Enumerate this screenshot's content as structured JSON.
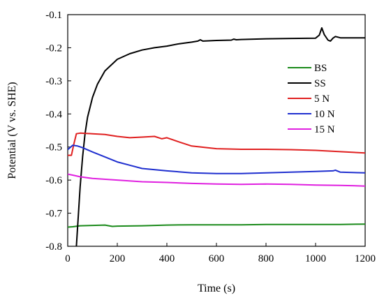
{
  "chart_data": {
    "type": "line",
    "xlabel": "Time (s)",
    "ylabel": "Potential (V vs. SHE)",
    "xlim": [
      0,
      1200
    ],
    "ylim": [
      -0.8,
      -0.1
    ],
    "x_ticks": [
      0,
      200,
      400,
      600,
      800,
      1000,
      1200
    ],
    "y_ticks": [
      -0.8,
      -0.7,
      -0.6,
      -0.5,
      -0.4,
      -0.3,
      -0.2,
      -0.1
    ],
    "x_tick_labels": [
      "0",
      "200",
      "400",
      "600",
      "800",
      "1000",
      "1200"
    ],
    "y_tick_labels": [
      "-0.8",
      "-0.7",
      "-0.6",
      "-0.5",
      "-0.4",
      "-0.3",
      "-0.2",
      "-0.1"
    ],
    "grid": false,
    "legend_position": "right",
    "series": [
      {
        "name": "BS",
        "color": "#1a8a1a",
        "x": [
          0,
          20,
          50,
          100,
          150,
          180,
          200,
          300,
          400,
          500,
          520,
          600,
          700,
          800,
          900,
          1000,
          1100,
          1200
        ],
        "y": [
          -0.742,
          -0.741,
          -0.738,
          -0.737,
          -0.736,
          -0.74,
          -0.739,
          -0.738,
          -0.736,
          -0.735,
          -0.735,
          -0.735,
          -0.735,
          -0.734,
          -0.734,
          -0.734,
          -0.734,
          -0.733
        ]
      },
      {
        "name": "SS",
        "color": "#000000",
        "x": [
          35,
          40,
          50,
          60,
          70,
          80,
          100,
          120,
          150,
          200,
          250,
          300,
          350,
          400,
          450,
          500,
          525,
          535,
          545,
          600,
          660,
          670,
          680,
          700,
          800,
          900,
          1000,
          1015,
          1025,
          1035,
          1050,
          1060,
          1070,
          1080,
          1100,
          1200
        ],
        "y": [
          -0.8,
          -0.74,
          -0.62,
          -0.53,
          -0.46,
          -0.41,
          -0.35,
          -0.31,
          -0.27,
          -0.235,
          -0.218,
          -0.207,
          -0.2,
          -0.195,
          -0.188,
          -0.183,
          -0.18,
          -0.176,
          -0.18,
          -0.178,
          -0.177,
          -0.174,
          -0.176,
          -0.175,
          -0.173,
          -0.172,
          -0.171,
          -0.162,
          -0.14,
          -0.16,
          -0.177,
          -0.18,
          -0.171,
          -0.166,
          -0.17,
          -0.17
        ]
      },
      {
        "name": "5 N",
        "color": "#e02020",
        "x": [
          0,
          15,
          25,
          35,
          50,
          100,
          150,
          200,
          250,
          300,
          350,
          380,
          400,
          450,
          500,
          600,
          700,
          800,
          900,
          1000,
          1100,
          1200
        ],
        "y": [
          -0.525,
          -0.525,
          -0.49,
          -0.46,
          -0.458,
          -0.46,
          -0.462,
          -0.468,
          -0.472,
          -0.47,
          -0.468,
          -0.475,
          -0.472,
          -0.485,
          -0.497,
          -0.505,
          -0.507,
          -0.507,
          -0.508,
          -0.51,
          -0.514,
          -0.518
        ]
      },
      {
        "name": "10 N",
        "color": "#1f2fcf",
        "x": [
          0,
          20,
          40,
          60,
          100,
          150,
          200,
          250,
          300,
          400,
          500,
          600,
          700,
          800,
          900,
          1000,
          1070,
          1080,
          1100,
          1200
        ],
        "y": [
          -0.508,
          -0.495,
          -0.497,
          -0.502,
          -0.515,
          -0.53,
          -0.545,
          -0.555,
          -0.565,
          -0.572,
          -0.578,
          -0.58,
          -0.58,
          -0.578,
          -0.576,
          -0.574,
          -0.572,
          -0.57,
          -0.576,
          -0.578
        ]
      },
      {
        "name": "15 N",
        "color": "#e020e0",
        "x": [
          0,
          20,
          50,
          100,
          200,
          300,
          400,
          500,
          600,
          700,
          800,
          900,
          1000,
          1100,
          1200
        ],
        "y": [
          -0.582,
          -0.585,
          -0.59,
          -0.595,
          -0.6,
          -0.605,
          -0.607,
          -0.61,
          -0.612,
          -0.613,
          -0.612,
          -0.613,
          -0.615,
          -0.616,
          -0.618
        ]
      }
    ]
  }
}
